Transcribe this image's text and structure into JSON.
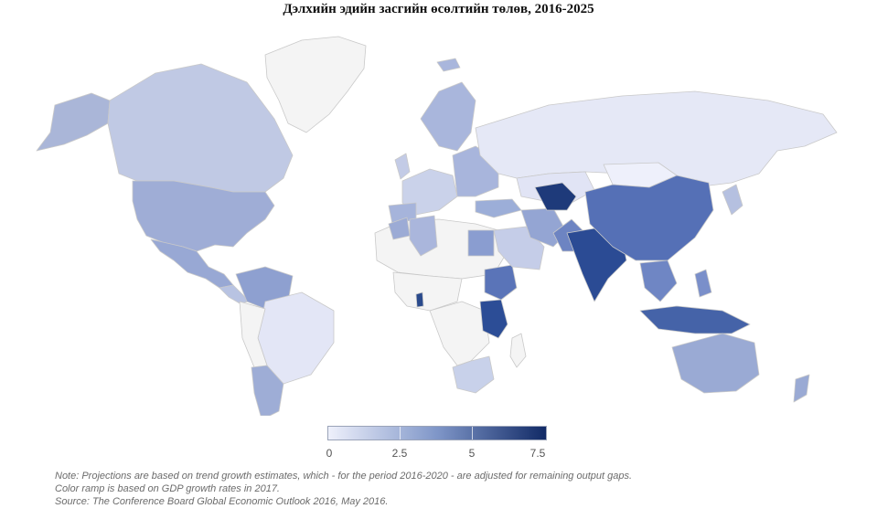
{
  "title": "Дэлхийн эдийн засгийн өсөлтийн төлөв, 2016-2025",
  "legend": {
    "ticks": [
      "0",
      "2.5",
      "5",
      "7.5"
    ],
    "range": [
      0,
      7.5
    ],
    "colors": [
      "#eef0fb",
      "#7f96c8",
      "#112a66"
    ]
  },
  "notes": [
    "Note: Projections are based on trend growth estimates, which - for the period 2016-2020 - are adjusted for remaining output gaps.",
    "Color ramp is based on GDP growth rates in 2017.",
    "Source: The Conference Board Global Economic Outlook 2016, May 2016."
  ],
  "colors": {
    "no_data": "#f4f4f4",
    "border": "#c9c9c9"
  }
}
